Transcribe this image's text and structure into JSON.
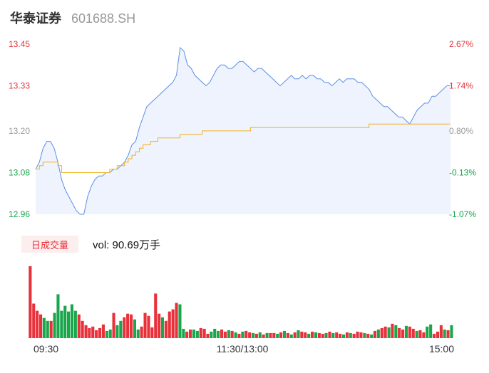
{
  "header": {
    "name": "华泰证券",
    "code": "601688.SH"
  },
  "colors": {
    "up": "#e8313a",
    "down": "#1aa64b",
    "neutral": "#999999",
    "price_line": "#5b8fe6",
    "avg_line": "#f2b01e",
    "area_fill": "#eef3fd"
  },
  "chart_data": [
    {
      "type": "line",
      "title": "",
      "x_tick_labels": [
        "09:30",
        "11:30/13:00",
        "15:00"
      ],
      "y_tick_labels": [
        "13.45",
        "13.33",
        "13.20",
        "13.08",
        "12.96"
      ],
      "y_right_tick_labels": [
        "2.67%",
        "1.74%",
        "0.80%",
        "-0.13%",
        "-1.07%"
      ],
      "ylim": [
        12.96,
        13.45
      ],
      "prev_close": 13.1,
      "series": [
        {
          "key": "price",
          "values": [
            13.09,
            13.11,
            13.15,
            13.17,
            13.17,
            13.15,
            13.11,
            13.06,
            13.03,
            13.01,
            12.99,
            12.97,
            12.96,
            12.96,
            13.01,
            13.04,
            13.06,
            13.07,
            13.07,
            13.08,
            13.08,
            13.09,
            13.09,
            13.1,
            13.11,
            13.13,
            13.16,
            13.17,
            13.21,
            13.24,
            13.27,
            13.28,
            13.29,
            13.3,
            13.31,
            13.32,
            13.33,
            13.34,
            13.36,
            13.44,
            13.43,
            13.39,
            13.38,
            13.36,
            13.35,
            13.34,
            13.33,
            13.34,
            13.36,
            13.38,
            13.39,
            13.39,
            13.38,
            13.38,
            13.39,
            13.4,
            13.4,
            13.39,
            13.38,
            13.37,
            13.38,
            13.38,
            13.37,
            13.36,
            13.35,
            13.34,
            13.33,
            13.34,
            13.35,
            13.36,
            13.35,
            13.35,
            13.36,
            13.35,
            13.36,
            13.36,
            13.35,
            13.35,
            13.34,
            13.34,
            13.33,
            13.34,
            13.35,
            13.34,
            13.35,
            13.35,
            13.35,
            13.34,
            13.34,
            13.33,
            13.32,
            13.3,
            13.29,
            13.28,
            13.27,
            13.27,
            13.26,
            13.25,
            13.24,
            13.24,
            13.23,
            13.22,
            13.24,
            13.26,
            13.27,
            13.28,
            13.28,
            13.3,
            13.3,
            13.31,
            13.32,
            13.33,
            13.33
          ],
          "points_per_bin": 1
        },
        {
          "key": "average",
          "values": [
            13.09,
            13.1,
            13.11,
            13.11,
            13.11,
            13.11,
            13.1,
            13.08,
            13.08,
            13.08,
            13.08,
            13.08,
            13.08,
            13.08,
            13.08,
            13.08,
            13.08,
            13.08,
            13.08,
            13.08,
            13.09,
            13.09,
            13.1,
            13.1,
            13.11,
            13.12,
            13.13,
            13.14,
            13.15,
            13.16,
            13.16,
            13.17,
            13.17,
            13.18,
            13.18,
            13.18,
            13.18,
            13.18,
            13.18,
            13.19,
            13.19,
            13.19,
            13.19,
            13.19,
            13.19,
            13.2,
            13.2,
            13.2,
            13.2,
            13.2,
            13.2,
            13.2,
            13.2,
            13.2,
            13.2,
            13.2,
            13.2,
            13.2,
            13.21,
            13.21,
            13.21,
            13.21,
            13.21,
            13.21,
            13.21,
            13.21,
            13.21,
            13.21,
            13.21,
            13.21,
            13.21,
            13.21,
            13.21,
            13.21,
            13.21,
            13.21,
            13.21,
            13.21,
            13.21,
            13.21,
            13.21,
            13.21,
            13.21,
            13.21,
            13.21,
            13.21,
            13.21,
            13.21,
            13.21,
            13.21,
            13.22,
            13.22,
            13.22,
            13.22,
            13.22,
            13.22,
            13.22,
            13.22,
            13.22,
            13.22,
            13.22,
            13.22,
            13.22,
            13.22,
            13.22,
            13.22,
            13.22,
            13.22,
            13.22,
            13.22,
            13.22,
            13.22,
            13.22
          ]
        }
      ]
    },
    {
      "type": "bar",
      "title": "日成交量",
      "volume_label": "vol: 90.69万手",
      "bars": [
        {
          "v": 100,
          "up": true
        },
        {
          "v": 48,
          "up": true
        },
        {
          "v": 38,
          "up": true
        },
        {
          "v": 33,
          "up": true
        },
        {
          "v": 28,
          "up": false
        },
        {
          "v": 24,
          "up": false
        },
        {
          "v": 24,
          "up": true
        },
        {
          "v": 35,
          "up": false
        },
        {
          "v": 61,
          "up": false
        },
        {
          "v": 38,
          "up": false
        },
        {
          "v": 45,
          "up": false
        },
        {
          "v": 37,
          "up": false
        },
        {
          "v": 47,
          "up": false
        },
        {
          "v": 38,
          "up": false
        },
        {
          "v": 33,
          "up": true
        },
        {
          "v": 24,
          "up": true
        },
        {
          "v": 18,
          "up": true
        },
        {
          "v": 14,
          "up": true
        },
        {
          "v": 16,
          "up": true
        },
        {
          "v": 11,
          "up": true
        },
        {
          "v": 14,
          "up": true
        },
        {
          "v": 19,
          "up": true
        },
        {
          "v": 10,
          "up": false
        },
        {
          "v": 12,
          "up": false
        },
        {
          "v": 35,
          "up": true
        },
        {
          "v": 18,
          "up": false
        },
        {
          "v": 24,
          "up": false
        },
        {
          "v": 29,
          "up": true
        },
        {
          "v": 34,
          "up": true
        },
        {
          "v": 33,
          "up": true
        },
        {
          "v": 26,
          "up": false
        },
        {
          "v": 12,
          "up": false
        },
        {
          "v": 16,
          "up": true
        },
        {
          "v": 35,
          "up": true
        },
        {
          "v": 31,
          "up": true
        },
        {
          "v": 15,
          "up": true
        },
        {
          "v": 62,
          "up": true
        },
        {
          "v": 34,
          "up": true
        },
        {
          "v": 29,
          "up": false
        },
        {
          "v": 24,
          "up": true
        },
        {
          "v": 37,
          "up": true
        },
        {
          "v": 40,
          "up": true
        },
        {
          "v": 49,
          "up": true
        },
        {
          "v": 47,
          "up": false
        },
        {
          "v": 13,
          "up": false
        },
        {
          "v": 9,
          "up": true
        },
        {
          "v": 12,
          "up": true
        },
        {
          "v": 12,
          "up": false
        },
        {
          "v": 10,
          "up": false
        },
        {
          "v": 14,
          "up": true
        },
        {
          "v": 13,
          "up": true
        },
        {
          "v": 6,
          "up": true
        },
        {
          "v": 9,
          "up": false
        },
        {
          "v": 13,
          "up": false
        },
        {
          "v": 10,
          "up": false
        },
        {
          "v": 12,
          "up": true
        },
        {
          "v": 9,
          "up": true
        },
        {
          "v": 11,
          "up": false
        },
        {
          "v": 10,
          "up": true
        },
        {
          "v": 8,
          "up": false
        },
        {
          "v": 6,
          "up": true
        },
        {
          "v": 9,
          "up": false
        },
        {
          "v": 10,
          "up": true
        },
        {
          "v": 8,
          "up": true
        },
        {
          "v": 7,
          "up": false
        },
        {
          "v": 6,
          "up": true
        },
        {
          "v": 8,
          "up": false
        },
        {
          "v": 5,
          "up": true
        },
        {
          "v": 7,
          "up": false
        },
        {
          "v": 7,
          "up": true
        },
        {
          "v": 7,
          "up": true
        },
        {
          "v": 6,
          "up": false
        },
        {
          "v": 8,
          "up": true
        },
        {
          "v": 10,
          "up": false
        },
        {
          "v": 7,
          "up": true
        },
        {
          "v": 5,
          "up": false
        },
        {
          "v": 8,
          "up": true
        },
        {
          "v": 11,
          "up": false
        },
        {
          "v": 9,
          "up": true
        },
        {
          "v": 8,
          "up": true
        },
        {
          "v": 6,
          "up": false
        },
        {
          "v": 9,
          "up": true
        },
        {
          "v": 8,
          "up": false
        },
        {
          "v": 7,
          "up": true
        },
        {
          "v": 6,
          "up": true
        },
        {
          "v": 7,
          "up": false
        },
        {
          "v": 9,
          "up": true
        },
        {
          "v": 7,
          "up": false
        },
        {
          "v": 8,
          "up": true
        },
        {
          "v": 6,
          "up": true
        },
        {
          "v": 5,
          "up": false
        },
        {
          "v": 8,
          "up": true
        },
        {
          "v": 7,
          "up": false
        },
        {
          "v": 6,
          "up": true
        },
        {
          "v": 9,
          "up": true
        },
        {
          "v": 8,
          "up": true
        },
        {
          "v": 7,
          "up": false
        },
        {
          "v": 6,
          "up": true
        },
        {
          "v": 5,
          "up": false
        },
        {
          "v": 10,
          "up": true
        },
        {
          "v": 12,
          "up": false
        },
        {
          "v": 14,
          "up": true
        },
        {
          "v": 16,
          "up": true
        },
        {
          "v": 15,
          "up": false
        },
        {
          "v": 20,
          "up": true
        },
        {
          "v": 18,
          "up": false
        },
        {
          "v": 14,
          "up": true
        },
        {
          "v": 12,
          "up": true
        },
        {
          "v": 17,
          "up": false
        },
        {
          "v": 16,
          "up": true
        },
        {
          "v": 13,
          "up": true
        },
        {
          "v": 10,
          "up": false
        },
        {
          "v": 11,
          "up": true
        },
        {
          "v": 8,
          "up": true
        },
        {
          "v": 16,
          "up": false
        },
        {
          "v": 19,
          "up": false
        },
        {
          "v": 6,
          "up": true
        },
        {
          "v": 9,
          "up": true
        },
        {
          "v": 18,
          "up": true
        },
        {
          "v": 12,
          "up": false
        },
        {
          "v": 11,
          "up": true
        },
        {
          "v": 18,
          "up": false
        }
      ]
    }
  ]
}
